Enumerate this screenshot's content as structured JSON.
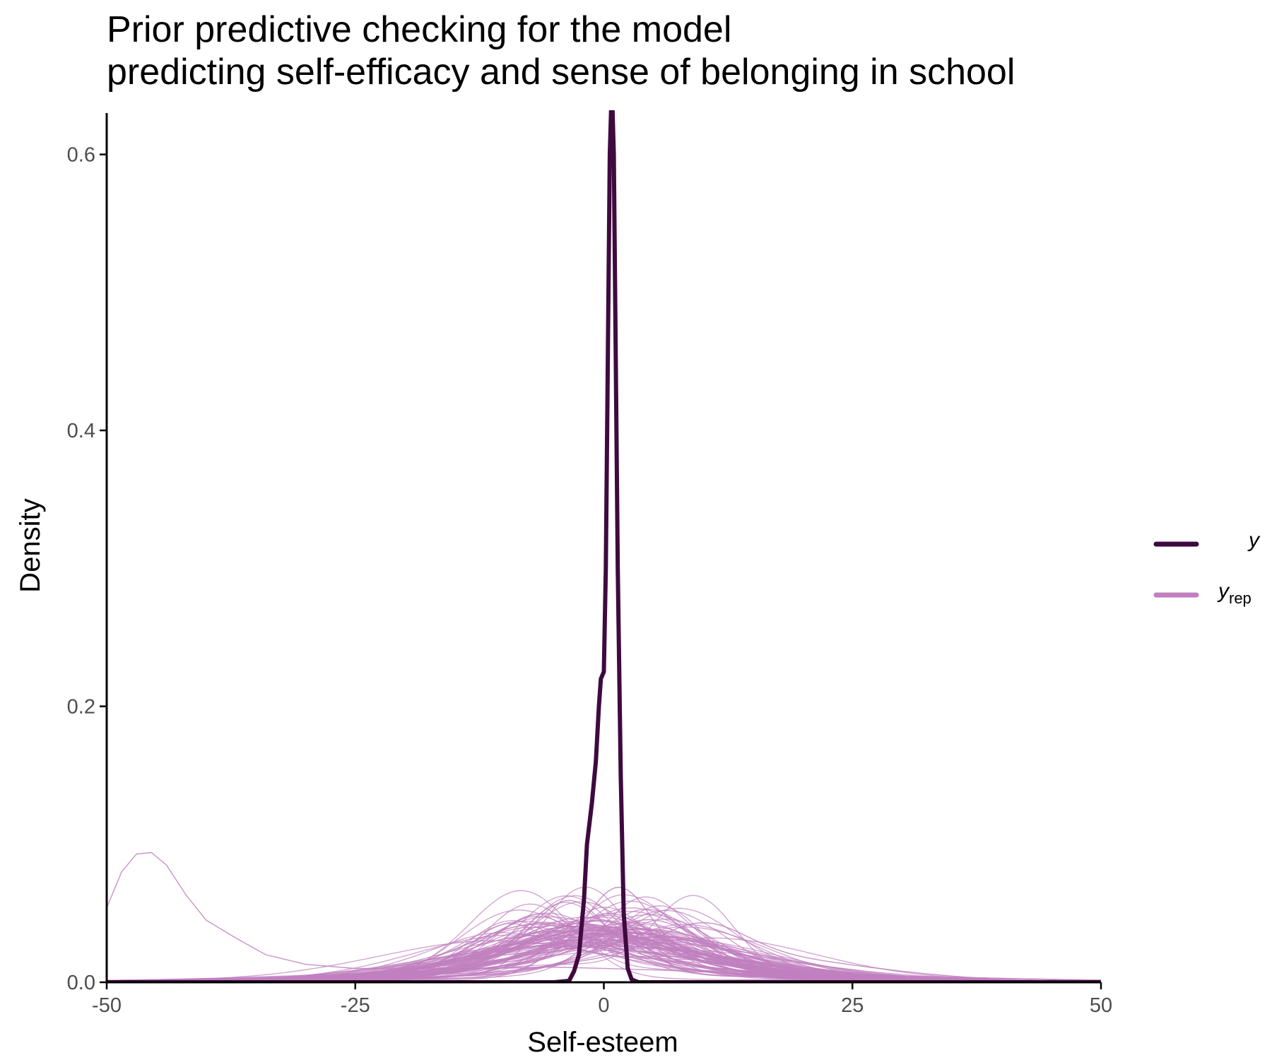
{
  "chart_data": {
    "type": "line",
    "title_lines": [
      "Prior predictive checking for the model",
      "predicting self-efficacy and sense of belonging in school"
    ],
    "xlabel": "Self-esteem",
    "ylabel": "Density",
    "xlim": [
      -50,
      50
    ],
    "ylim": [
      0,
      0.63
    ],
    "xticks": [
      -50,
      -25,
      0,
      25,
      50
    ],
    "xtick_labels": [
      "-50",
      "-25",
      "0",
      "25",
      "50"
    ],
    "yticks": [
      0,
      0.2,
      0.4,
      0.6
    ],
    "ytick_labels": [
      "0.0",
      "0.2",
      "0.4",
      "0.6"
    ],
    "grid": false,
    "legend_position": "right",
    "legend": [
      {
        "key": "y",
        "label": "y",
        "subscript": "",
        "color": "#3f0a3f"
      },
      {
        "key": "yrep",
        "label": "y",
        "subscript": "rep",
        "color": "#c080bf"
      }
    ],
    "series": [
      {
        "name": "y",
        "color": "#3f0a3f",
        "points": [
          [
            -50,
            0
          ],
          [
            -5,
            0
          ],
          [
            -3.5,
            0.001
          ],
          [
            -3,
            0.008
          ],
          [
            -2.5,
            0.02
          ],
          [
            -2,
            0.06
          ],
          [
            -1.7,
            0.1
          ],
          [
            -1.2,
            0.13
          ],
          [
            -0.8,
            0.16
          ],
          [
            -0.5,
            0.2
          ],
          [
            -0.3,
            0.22
          ],
          [
            0,
            0.225
          ],
          [
            0.2,
            0.3
          ],
          [
            0.4,
            0.45
          ],
          [
            0.6,
            0.6
          ],
          [
            0.8,
            0.65
          ],
          [
            1.0,
            0.6
          ],
          [
            1.2,
            0.45
          ],
          [
            1.4,
            0.3
          ],
          [
            1.7,
            0.15
          ],
          [
            2.0,
            0.05
          ],
          [
            2.4,
            0.01
          ],
          [
            2.8,
            0.002
          ],
          [
            3.5,
            0
          ],
          [
            50,
            0
          ]
        ]
      }
    ],
    "yrep_draws": 100,
    "yrep_outlier": {
      "points": [
        [
          -50,
          0.054
        ],
        [
          -48.5,
          0.08
        ],
        [
          -47,
          0.093
        ],
        [
          -45.5,
          0.094
        ],
        [
          -44,
          0.085
        ],
        [
          -42,
          0.063
        ],
        [
          -40,
          0.045
        ],
        [
          -37,
          0.032
        ],
        [
          -34,
          0.02
        ],
        [
          -30,
          0.013
        ],
        [
          -25,
          0.01
        ],
        [
          -15,
          0.01
        ],
        [
          -5,
          0.011
        ],
        [
          5,
          0.009
        ],
        [
          15,
          0.006
        ],
        [
          25,
          0.004
        ],
        [
          35,
          0.002
        ],
        [
          50,
          0.001
        ]
      ]
    }
  }
}
